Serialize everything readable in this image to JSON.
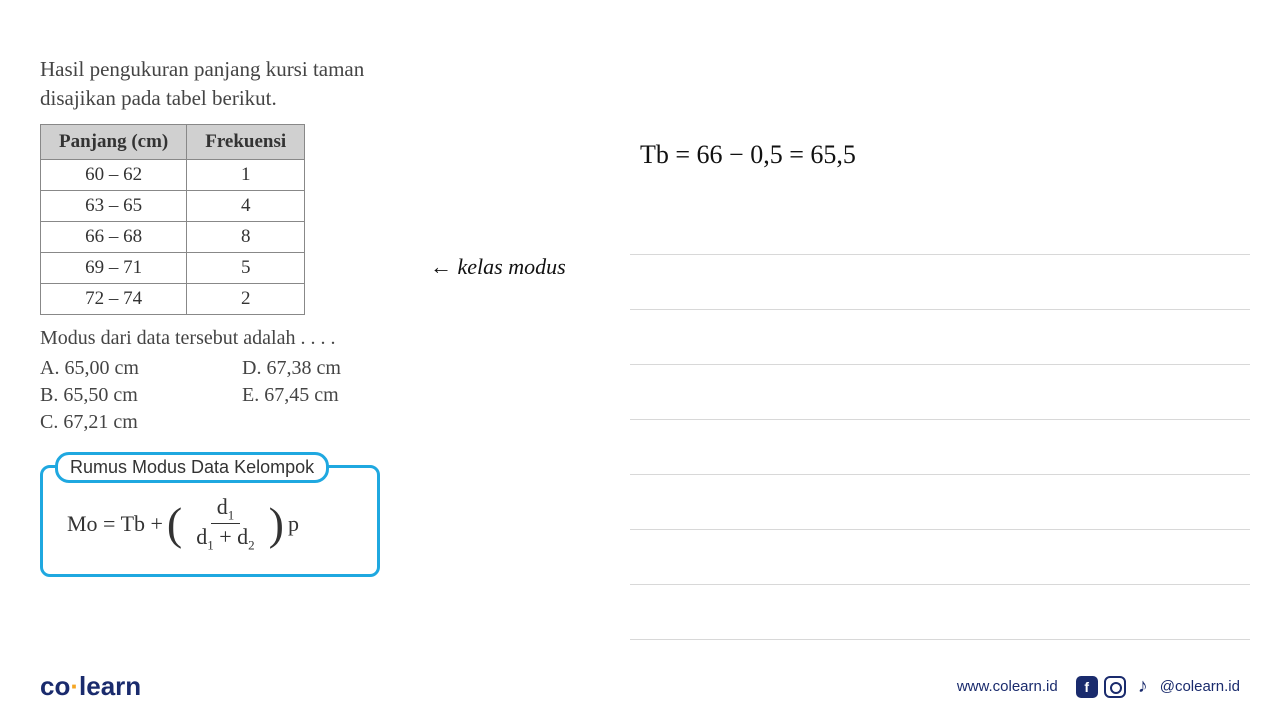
{
  "problem": {
    "line1": "Hasil pengukuran panjang kursi taman",
    "line2": "disajikan pada tabel berikut."
  },
  "table": {
    "header_col1": "Panjang (cm)",
    "header_col2": "Frekuensi",
    "rows": [
      {
        "range": "60 – 62",
        "freq": "1"
      },
      {
        "range": "63 – 65",
        "freq": "4"
      },
      {
        "range": "66 – 68",
        "freq": "8"
      },
      {
        "range": "69 – 71",
        "freq": "5"
      },
      {
        "range": "72 – 74",
        "freq": "2"
      }
    ]
  },
  "annotation": "← kelas modus",
  "question": "Modus dari data tersebut adalah . . . .",
  "options": {
    "A": "A.   65,00 cm",
    "B": "B.   65,50 cm",
    "C": "C.   67,21 cm",
    "D": "D.   67,38 cm",
    "E": "E.   67,45 cm"
  },
  "formula_box": {
    "title": "Rumus Modus Data Kelompok",
    "lhs": "Mo = Tb +",
    "num": "d",
    "num_sub": "1",
    "den_a": "d",
    "den_a_sub": "1",
    "den_plus": " + ",
    "den_b": "d",
    "den_b_sub": "2",
    "suffix": "p"
  },
  "handwritten": "Tb = 66 − 0,5 = 65,5",
  "footer": {
    "logo_co": "co",
    "logo_dot": "·",
    "logo_learn": "learn",
    "website": "www.colearn.id",
    "handle": "@colearn.id",
    "fb_letter": "f",
    "tk_glyph": "♪"
  },
  "styling": {
    "border_color": "#1fa8e0",
    "text_color": "#444",
    "logo_color": "#1a2b6d",
    "dot_color": "#f5a623",
    "background": "#ffffff",
    "table_header_bg": "#d0d0d0",
    "table_border": "#888",
    "ruled_line_color": "#d8d8d8"
  }
}
